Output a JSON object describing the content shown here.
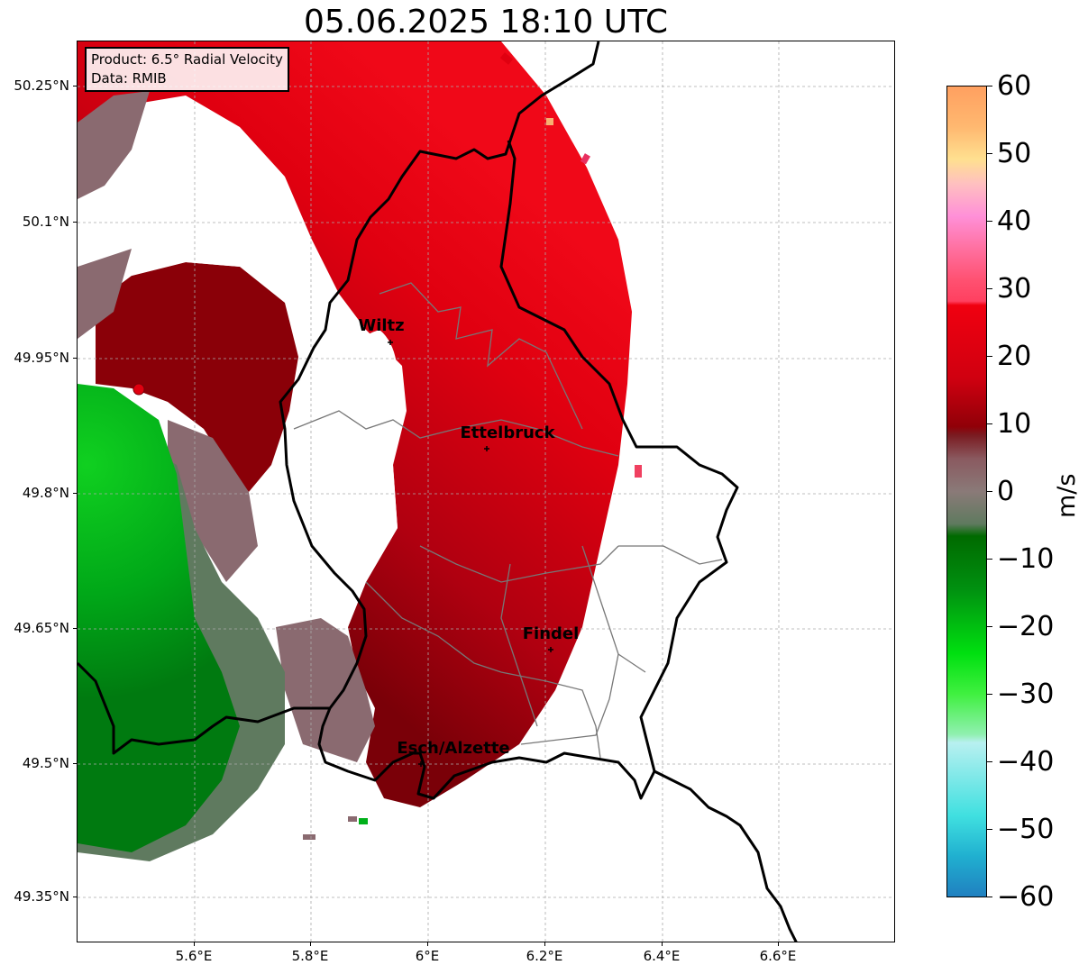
{
  "title": "05.06.2025 18:10 UTC",
  "info": {
    "product": "Product: 6.5° Radial Velocity",
    "source": "Data: RMIB"
  },
  "axes": {
    "lat_ticks": [
      "50.25°N",
      "50.1°N",
      "49.95°N",
      "49.8°N",
      "49.65°N",
      "49.5°N",
      "49.35°N"
    ],
    "lon_ticks": [
      "5.6°E",
      "5.8°E",
      "6°E",
      "6.2°E",
      "6.4°E",
      "6.6°E"
    ]
  },
  "colorbar": {
    "label": "m/s",
    "ticks": [
      "60",
      "50",
      "40",
      "30",
      "20",
      "10",
      "0",
      "−10",
      "−20",
      "−30",
      "−40",
      "−50",
      "−60"
    ],
    "min": -60,
    "max": 60
  },
  "cities": [
    {
      "name": "Wiltz"
    },
    {
      "name": "Ettelbruck"
    },
    {
      "name": "Findel"
    },
    {
      "name": "Esch/Alzette"
    }
  ],
  "colors": {
    "red": "#e00010",
    "dark_red": "#7a0008",
    "green": "#00b01a",
    "grey_brown": "#8a6a70",
    "grey_green": "#5f7a5f"
  }
}
